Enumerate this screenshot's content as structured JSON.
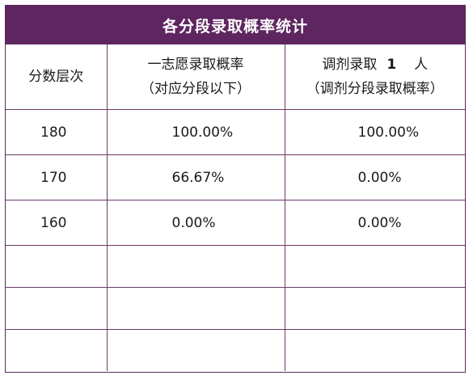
{
  "table": {
    "title": "各分段录取概率统计",
    "headers": {
      "score": "分数层次",
      "first_choice_line1": "一志愿录取概率",
      "first_choice_line2": "（对应分段以下）",
      "adjust_prefix": "调剂录取",
      "adjust_count": "1",
      "adjust_suffix": "人",
      "adjust_line2": "（调剂分段录取概率）"
    },
    "rows": [
      {
        "score": "180",
        "first_choice": "100.00%",
        "adjust": "100.00%"
      },
      {
        "score": "170",
        "first_choice": "66.67%",
        "adjust": "0.00%"
      },
      {
        "score": "160",
        "first_choice": "0.00%",
        "adjust": "0.00%"
      }
    ]
  }
}
